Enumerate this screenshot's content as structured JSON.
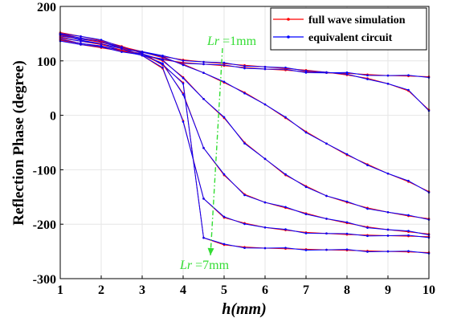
{
  "chart_data": {
    "type": "line",
    "xlabel": "h(mm)",
    "ylabel": "Reflection Phase (degree)",
    "xlim": [
      1,
      10
    ],
    "ylim": [
      -300,
      200
    ],
    "xticks": [
      "1",
      "2",
      "3",
      "4",
      "5",
      "6",
      "7",
      "8",
      "9",
      "10"
    ],
    "yticks": [
      "200",
      "100",
      "0",
      "-100",
      "-200",
      "-300"
    ],
    "grid": true,
    "legend_position": "top-right",
    "legend": [
      {
        "label": "full wave simulation",
        "color": "#ff0000",
        "marker": "dot"
      },
      {
        "label": "equivalent circuit",
        "color": "#0000ff",
        "marker": "dot"
      }
    ],
    "annotations": {
      "top": {
        "italic": "Lr",
        "rest": " =1mm"
      },
      "bottom": {
        "italic": "Lr",
        "rest": " =7mm"
      },
      "color": "#33dd33"
    },
    "x": [
      1,
      1.5,
      2,
      2.5,
      3,
      3.5,
      4,
      4.5,
      5,
      5.5,
      6,
      6.5,
      7,
      7.5,
      8,
      8.5,
      9,
      9.5,
      10
    ],
    "series": [
      {
        "values": [
          150,
          138,
          130,
          120,
          110,
          102,
          97,
          94,
          91,
          88,
          85,
          83,
          80,
          78,
          77,
          75,
          73,
          72,
          71
        ]
      },
      {
        "values": [
          147,
          140,
          134,
          126,
          117,
          108,
          102,
          98,
          95,
          92,
          89,
          86,
          83,
          79,
          74,
          68,
          58,
          45,
          10
        ]
      },
      {
        "values": [
          144,
          136,
          130,
          124,
          116,
          106,
          94,
          78,
          60,
          42,
          20,
          -5,
          -30,
          -52,
          -73,
          -90,
          -107,
          -122,
          -140
        ]
      },
      {
        "values": [
          141,
          132,
          126,
          120,
          113,
          100,
          70,
          30,
          -5,
          -50,
          -80,
          -110,
          -130,
          -148,
          -160,
          -170,
          -178,
          -185,
          -190
        ]
      },
      {
        "values": [
          138,
          130,
          124,
          118,
          111,
          94,
          40,
          -60,
          -110,
          -145,
          -160,
          -170,
          -180,
          -190,
          -198,
          -205,
          -210,
          -214,
          -218
        ]
      },
      {
        "values": [
          150,
          142,
          134,
          124,
          110,
          86,
          -10,
          -153,
          -188,
          -198,
          -206,
          -211,
          -215,
          -217,
          -219,
          -220,
          -221,
          -222,
          -223
        ]
      },
      {
        "values": [
          152,
          145,
          137,
          127,
          114,
          92,
          60,
          -225,
          -238,
          -242,
          -244,
          -245,
          -246,
          -247,
          -248,
          -249,
          -250,
          -251,
          -252
        ]
      }
    ]
  }
}
